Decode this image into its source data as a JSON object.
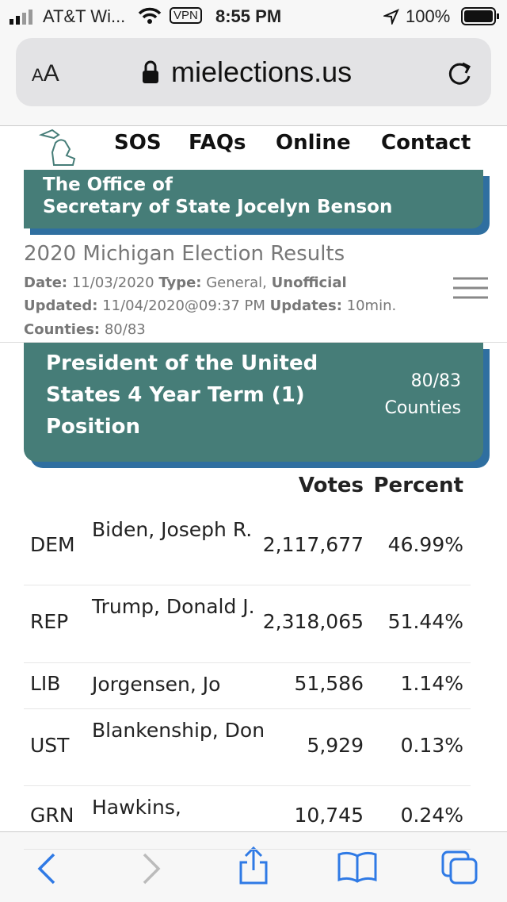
{
  "status_bar": {
    "carrier": "AT&T Wi...",
    "vpn": "VPN",
    "time": "8:55 PM",
    "battery": "100%"
  },
  "address_bar": {
    "text_size": "AA",
    "url": "mielections.us"
  },
  "nav": {
    "links": [
      "SOS",
      "FAQs",
      "Online",
      "Contact"
    ]
  },
  "banner": {
    "line1": "The Office of",
    "line2": "Secretary of State Jocelyn Benson"
  },
  "results": {
    "title": "2020 Michigan Election Results",
    "date": {
      "label": "Date:",
      "value": "11/03/2020"
    },
    "type": {
      "label": "Type:",
      "value": "General,",
      "status": "Unofficial"
    },
    "updated": {
      "label": "Updated:",
      "value": "11/04/2020@09:37 PM"
    },
    "updates": {
      "label": "Updates:",
      "value": "10min."
    },
    "counties": {
      "label": "Counties:",
      "value": "80/83"
    }
  },
  "contest": {
    "title": "President of the United States 4 Year Term (1) Position",
    "counties": "80/83",
    "counties_label": "Counties"
  },
  "table": {
    "headers": [
      "Votes",
      "Percent"
    ],
    "rows": [
      [
        "DEM",
        "Biden, Joseph R.",
        "2,117,677",
        "46.99%"
      ],
      [
        "REP",
        "Trump, Donald J.",
        "2,318,065",
        "51.44%"
      ],
      [
        "LIB",
        "Jorgensen, Jo",
        "51,586",
        "1.14%"
      ],
      [
        "UST",
        "Blankenship, Don",
        "5,929",
        "0.13%"
      ],
      [
        "GRN",
        "Hawkins,",
        "10,745",
        "0.24%"
      ]
    ]
  }
}
